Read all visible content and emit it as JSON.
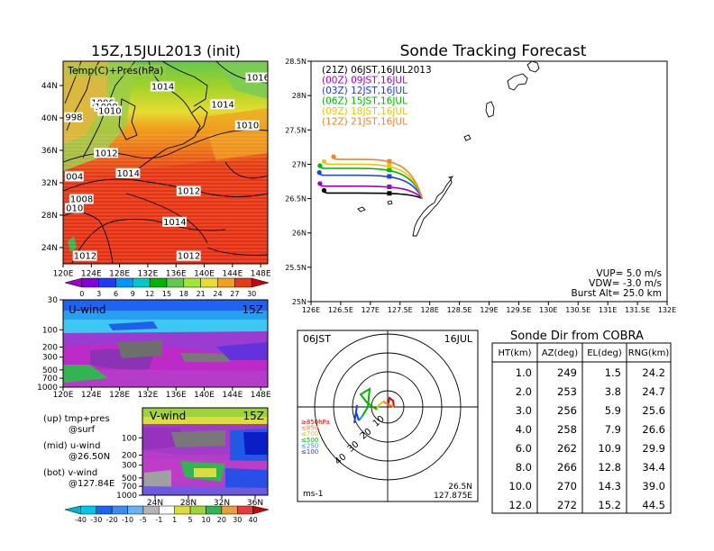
{
  "chart_data": [
    {
      "type": "heatmap",
      "title": "15Z,15JUL2013 (init)",
      "label": "Temp(C)+Pres(hPa)",
      "x_ticks": [
        "120E",
        "124E",
        "128E",
        "132E",
        "136E",
        "140E",
        "144E",
        "148E"
      ],
      "y_ticks": [
        "24N",
        "28N",
        "32N",
        "36N",
        "40N",
        "44N"
      ],
      "colorbar_ticks": [
        "0",
        "3",
        "6",
        "9",
        "12",
        "15",
        "18",
        "21",
        "24",
        "27",
        "30"
      ],
      "pressure_labels": [
        {
          "text": "1016",
          "lon": 146,
          "lat": 44.6
        },
        {
          "text": "1014",
          "lon": 132.5,
          "lat": 43.5
        },
        {
          "text": "1014",
          "lon": 141,
          "lat": 41.3
        },
        {
          "text": "1006",
          "lon": 124,
          "lat": 41.5
        },
        {
          "text": "1008",
          "lon": 124.5,
          "lat": 41
        },
        {
          "text": "1010",
          "lon": 125,
          "lat": 40.5
        },
        {
          "text": "998",
          "lon": 120.3,
          "lat": 39.7
        },
        {
          "text": "1010",
          "lon": 144.5,
          "lat": 38.7
        },
        {
          "text": "1012",
          "lon": 124.5,
          "lat": 35.3
        },
        {
          "text": "1014",
          "lon": 127.6,
          "lat": 32.8
        },
        {
          "text": "004",
          "lon": 120.4,
          "lat": 32.4
        },
        {
          "text": "1012",
          "lon": 136.2,
          "lat": 30.6
        },
        {
          "text": "1008",
          "lon": 121,
          "lat": 29.6
        },
        {
          "text": "010",
          "lon": 120.4,
          "lat": 28.5
        },
        {
          "text": "1014",
          "lon": 134.2,
          "lat": 26.8
        },
        {
          "text": "1012",
          "lon": 136.2,
          "lat": 22.6
        },
        {
          "text": "1012",
          "lon": 121.5,
          "lat": 22.6
        }
      ]
    },
    {
      "type": "heatmap",
      "title": "U-wind",
      "time_label": "15Z",
      "x_ticks": [
        "120E",
        "124E",
        "128E",
        "132E",
        "136E",
        "140E",
        "144E",
        "148E"
      ],
      "y_ticks": [
        "30",
        "100",
        "200",
        "300",
        "500",
        "700",
        "1000"
      ]
    },
    {
      "type": "heatmap",
      "title": "V-wind",
      "time_label": "15Z",
      "x_ticks": [
        "24N",
        "28N",
        "32N",
        "36N"
      ],
      "y_ticks": [
        "100",
        "200",
        "300",
        "500",
        "700",
        "1000"
      ],
      "colorbar_ticks": [
        "-40",
        "-30",
        "-20",
        "-10",
        "-5",
        "-1",
        "1",
        "5",
        "10",
        "20",
        "30",
        "40"
      ]
    },
    {
      "type": "line",
      "title": "Sonde Tracking Forecast",
      "xlim": [
        126,
        132
      ],
      "ylim": [
        25,
        28.5
      ],
      "x_ticks": [
        "126E",
        "126.5E",
        "127E",
        "127.5E",
        "128E",
        "128.5E",
        "129E",
        "129.5E",
        "130E",
        "130.5E",
        "131E",
        "131.5E",
        "132E"
      ],
      "y_ticks": [
        "25N",
        "25.5N",
        "26N",
        "26.5N",
        "27N",
        "27.5N",
        "28N",
        "28.5N"
      ],
      "launch": {
        "lon": 127.875,
        "lat": 26.5
      },
      "series": [
        {
          "name": "(21Z) 06JST,16JUL2013",
          "color": "#000000",
          "end": [
            126.22,
            26.58
          ]
        },
        {
          "name": "(00Z) 09JST,16JUL",
          "color": "#a000c8",
          "end": [
            126.15,
            26.68
          ]
        },
        {
          "name": "(03Z) 12JST,16JUL",
          "color": "#1e3cff",
          "end": [
            126.14,
            26.84
          ]
        },
        {
          "name": "(06Z) 15JST,16JUL",
          "color": "#00b400",
          "end": [
            126.15,
            26.94
          ]
        },
        {
          "name": "(09Z) 18JST,16JUL",
          "color": "#e6c800",
          "end": [
            126.22,
            27.0
          ]
        },
        {
          "name": "(12Z) 21JST,16JUL",
          "color": "#f08228",
          "end": [
            126.38,
            27.07
          ]
        }
      ],
      "params": [
        "VUP=  5.0 m/s",
        "VDW= -3.0 m/s",
        "Burst Alt=  25.0 km"
      ]
    },
    {
      "type": "line",
      "title_left": "06JST",
      "title_right": "16JUL",
      "ring_labels": [
        "10",
        "20",
        "30",
        "40"
      ],
      "legend": [
        {
          "text": "≥850hPa",
          "color": "#e60000"
        },
        {
          "text": "≤850",
          "color": "#f08228"
        },
        {
          "text": "≤700",
          "color": "#e6c800"
        },
        {
          "text": "≤500",
          "color": "#00b400"
        },
        {
          "text": "≤250",
          "color": "#00a0e6"
        },
        {
          "text": "≤100",
          "color": "#1e3cff"
        }
      ],
      "unit": "ms-1",
      "location": [
        "26.5N",
        "127.875E"
      ]
    },
    {
      "type": "table",
      "title": "Sonde Dir from COBRA",
      "columns": [
        "HT(km)",
        "AZ(deg)",
        "EL(deg)",
        "RNG(km)"
      ],
      "rows": [
        [
          "1.0",
          "249",
          "1.5",
          "24.2"
        ],
        [
          "2.0",
          "253",
          "3.8",
          "24.7"
        ],
        [
          "3.0",
          "256",
          "5.9",
          "25.6"
        ],
        [
          "4.0",
          "258",
          "7.9",
          "26.6"
        ],
        [
          "6.0",
          "262",
          "10.9",
          "29.9"
        ],
        [
          "8.0",
          "266",
          "12.8",
          "34.4"
        ],
        [
          "10.0",
          "270",
          "14.3",
          "39.0"
        ],
        [
          "12.0",
          "272",
          "15.2",
          "44.5"
        ]
      ]
    }
  ],
  "notes": [
    {
      "main": "(up) tmp+pres",
      "sub": "@surf"
    },
    {
      "main": "(mid) u-wind",
      "sub": "@26.50N"
    },
    {
      "main": "(bot) v-wind",
      "sub": "@127.84E"
    }
  ]
}
